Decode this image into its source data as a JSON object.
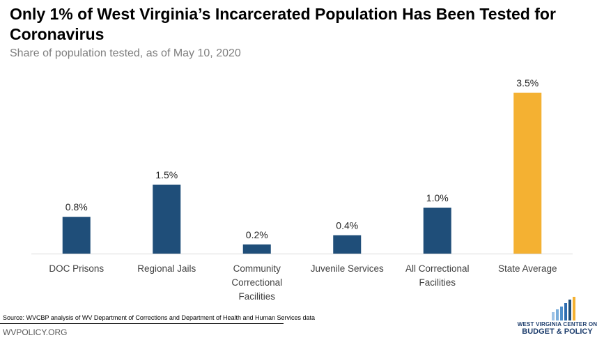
{
  "chart_data": {
    "type": "bar",
    "title": "Only 1% of West Virginia’s Incarcerated Population Has Been Tested for Coronavirus",
    "subtitle": "Share of population tested, as of May 10, 2020",
    "categories": [
      [
        "DOC Prisons"
      ],
      [
        "Regional Jails"
      ],
      [
        "Community",
        "Correctional",
        "Facilities"
      ],
      [
        "Juvenile Services"
      ],
      [
        "All Correctional",
        "Facilities"
      ],
      [
        "State Average"
      ]
    ],
    "values": [
      0.8,
      1.5,
      0.2,
      0.4,
      1.0,
      3.5
    ],
    "value_labels": [
      "0.8%",
      "1.5%",
      "0.2%",
      "0.4%",
      "1.0%",
      "3.5%"
    ],
    "colors": [
      "#1f4e79",
      "#1f4e79",
      "#1f4e79",
      "#1f4e79",
      "#1f4e79",
      "#f4b132"
    ],
    "ylim": [
      0,
      3.5
    ],
    "grid": false,
    "legend": "none"
  },
  "footer": {
    "source": "Source: WVCBP analysis of WV Department of Corrections and Department of Health and Human Services data",
    "site": "WVPOLICY.ORG"
  },
  "logo": {
    "line1": "WEST VIRGINIA CENTER ON",
    "line2": "BUDGET & POLICY"
  }
}
